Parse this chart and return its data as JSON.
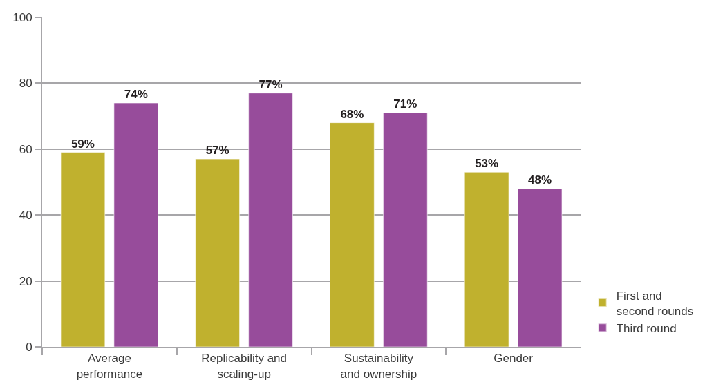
{
  "chart_data": {
    "type": "bar",
    "categories": [
      "Average performance",
      "Replicability and scaling-up",
      "Sustainability and ownership",
      "Gender"
    ],
    "series": [
      {
        "name": "First and second rounds",
        "color": "#c0b12e",
        "values": [
          59,
          57,
          68,
          53
        ],
        "value_labels": [
          "59%",
          "57%",
          "68%",
          "53%"
        ]
      },
      {
        "name": "Third round",
        "color": "#974c9b",
        "values": [
          74,
          77,
          71,
          48
        ],
        "value_labels": [
          "74%",
          "77%",
          "71%",
          "48%"
        ]
      }
    ],
    "ylim": [
      0,
      100
    ],
    "yticks": [
      0,
      20,
      40,
      60,
      80,
      100
    ],
    "grid": "y",
    "legend": "bottom right"
  }
}
